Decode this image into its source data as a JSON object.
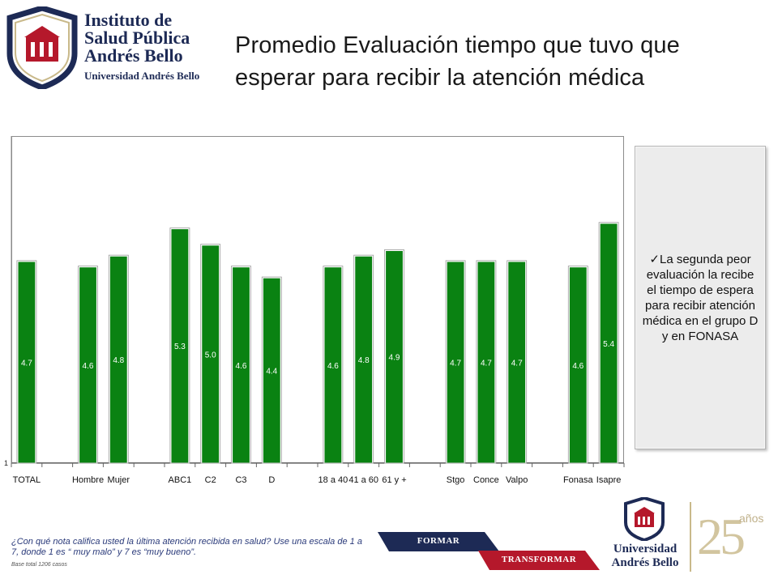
{
  "header": {
    "logo": {
      "line1": "Instituto de",
      "line2": "Salud Pública",
      "line3": "Andrés Bello",
      "line4": "Universidad Andrés Bello"
    },
    "title": "Promedio Evaluación tiempo que tuvo que esperar para recibir la atención médica"
  },
  "chart_data": {
    "type": "bar",
    "title": "",
    "xlabel": "",
    "ylabel": "",
    "ylim": [
      1,
      7
    ],
    "y_tick_labels": [
      "1"
    ],
    "grid": false,
    "bar_color": "#0a8212",
    "categories": [
      "TOTAL",
      "",
      "Hombre",
      "Mujer",
      "",
      "ABC1",
      "C2",
      "C3",
      "D",
      "",
      "18 a 40",
      "41 a 60",
      "61 y +",
      "",
      "Stgo",
      "Conce",
      "Valpo",
      "",
      "Fonasa",
      "Isapre"
    ],
    "values": [
      4.7,
      null,
      4.6,
      4.8,
      null,
      5.3,
      5.0,
      4.6,
      4.4,
      null,
      4.6,
      4.8,
      4.9,
      null,
      4.7,
      4.7,
      4.7,
      null,
      4.6,
      5.4
    ],
    "data_labels": [
      "4.7",
      "",
      "4.6",
      "4.8",
      "",
      "5.3",
      "5.0",
      "4.6",
      "4.4",
      "",
      "4.6",
      "4.8",
      "4.9",
      "",
      "4.7",
      "4.7",
      "4.7",
      "",
      "4.6",
      "5.4"
    ]
  },
  "note": {
    "text": "La segunda peor evaluación la recibe el tiempo de espera para recibir atención médica en el grupo D y en FONASA",
    "bullet": "✓"
  },
  "footer": {
    "question": "¿Con qué nota califica usted la última atención recibida en salud? Use una escala de 1 a 7, donde 1 es “ muy malo” y 7 es “muy bueno”.",
    "base": "Base total 1206  casos",
    "formar": "FORMAR",
    "transformar": "TRANSFORMAR",
    "uab_line1": "Universidad",
    "uab_line2": "Andrés Bello",
    "anniv_number": "25",
    "anniv_word": "años"
  },
  "colors": {
    "navy": "#1d2a55",
    "red": "#b5182b",
    "green": "#0a8212",
    "gold": "#c9b98a"
  }
}
